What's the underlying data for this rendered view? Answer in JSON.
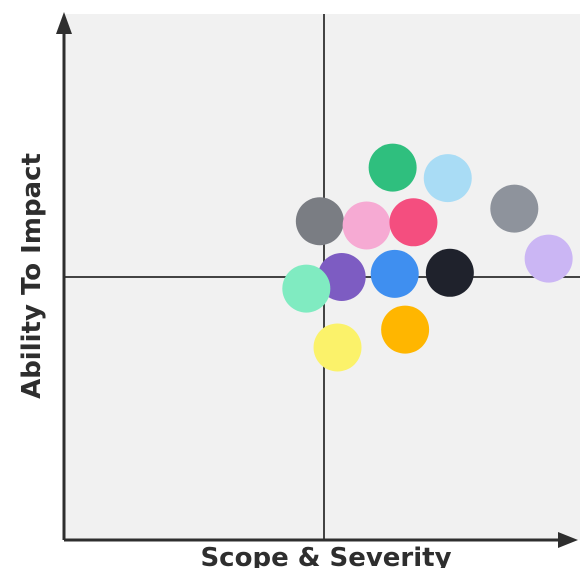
{
  "chart_data": {
    "type": "scatter",
    "title": "",
    "xlabel": "Scope & Severity",
    "ylabel": "Ability To Impact",
    "xlim": [
      0,
      10
    ],
    "ylim": [
      0,
      10
    ],
    "quadrant_divider": {
      "x": 5,
      "y": 5
    },
    "grid": false,
    "legend": "none",
    "points": [
      {
        "x": 6.32,
        "y": 7.08,
        "color": "#2fbf7e"
      },
      {
        "x": 7.38,
        "y": 6.88,
        "color": "#a9dcf5"
      },
      {
        "x": 8.66,
        "y": 6.3,
        "color": "#8e939c"
      },
      {
        "x": 9.32,
        "y": 5.35,
        "color": "#cbb6f4"
      },
      {
        "x": 4.92,
        "y": 6.06,
        "color": "#7a7d83"
      },
      {
        "x": 5.82,
        "y": 5.98,
        "color": "#f6aad3"
      },
      {
        "x": 6.72,
        "y": 6.04,
        "color": "#f44e7f"
      },
      {
        "x": 5.34,
        "y": 5.0,
        "color": "#7d5cc2"
      },
      {
        "x": 6.36,
        "y": 5.06,
        "color": "#3f8ff0"
      },
      {
        "x": 7.42,
        "y": 5.08,
        "color": "#1f222c"
      },
      {
        "x": 4.66,
        "y": 4.78,
        "color": "#80ebc1"
      },
      {
        "x": 5.26,
        "y": 3.66,
        "color": "#fbf26a"
      },
      {
        "x": 6.56,
        "y": 4.0,
        "color": "#ffb600"
      }
    ]
  }
}
